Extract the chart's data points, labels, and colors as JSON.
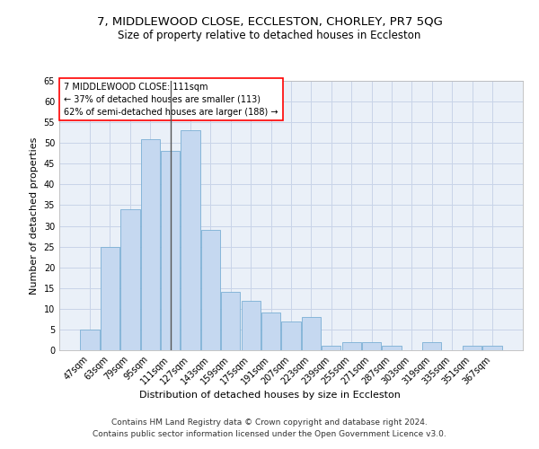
{
  "title": "7, MIDDLEWOOD CLOSE, ECCLESTON, CHORLEY, PR7 5QG",
  "subtitle": "Size of property relative to detached houses in Eccleston",
  "xlabel": "Distribution of detached houses by size in Eccleston",
  "ylabel": "Number of detached properties",
  "categories": [
    "47sqm",
    "63sqm",
    "79sqm",
    "95sqm",
    "111sqm",
    "127sqm",
    "143sqm",
    "159sqm",
    "175sqm",
    "191sqm",
    "207sqm",
    "223sqm",
    "239sqm",
    "255sqm",
    "271sqm",
    "287sqm",
    "303sqm",
    "319sqm",
    "335sqm",
    "351sqm",
    "367sqm"
  ],
  "values": [
    5,
    25,
    34,
    51,
    48,
    53,
    29,
    14,
    12,
    9,
    7,
    8,
    1,
    2,
    2,
    1,
    0,
    2,
    0,
    1,
    1
  ],
  "bar_color": "#c5d8f0",
  "bar_edge_color": "#7aafd4",
  "marker_index": 4,
  "marker_line_color": "#555555",
  "annotation_text": "7 MIDDLEWOOD CLOSE: 111sqm\n← 37% of detached houses are smaller (113)\n62% of semi-detached houses are larger (188) →",
  "annotation_box_color": "white",
  "annotation_box_edge_color": "red",
  "ylim": [
    0,
    65
  ],
  "yticks": [
    0,
    5,
    10,
    15,
    20,
    25,
    30,
    35,
    40,
    45,
    50,
    55,
    60,
    65
  ],
  "grid_color": "#c8d4e8",
  "background_color": "#eaf0f8",
  "footer_text": "Contains HM Land Registry data © Crown copyright and database right 2024.\nContains public sector information licensed under the Open Government Licence v3.0.",
  "title_fontsize": 9.5,
  "subtitle_fontsize": 8.5,
  "xlabel_fontsize": 8,
  "ylabel_fontsize": 8,
  "tick_fontsize": 7,
  "footer_fontsize": 6.5,
  "annotation_fontsize": 7
}
